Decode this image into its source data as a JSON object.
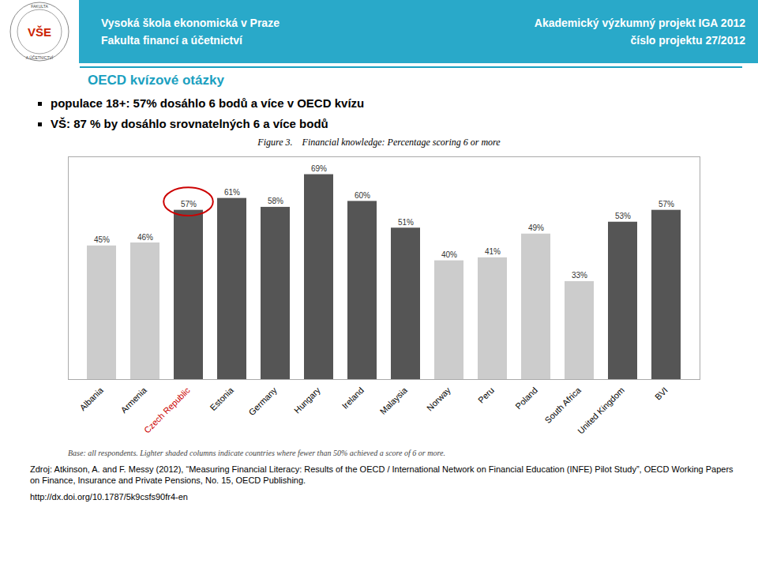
{
  "chart_data": {
    "type": "bar",
    "title": "Figure 3.    Financial knowledge: Percentage scoring 6 or more",
    "categories": [
      "Albania",
      "Armenia",
      "Czech Republic",
      "Estonia",
      "Germany",
      "Hungary",
      "Ireland",
      "Malaysia",
      "Norway",
      "Peru",
      "Poland",
      "South Africa",
      "United Kingdom",
      "BVI"
    ],
    "values": [
      45,
      46,
      57,
      61,
      58,
      69,
      60,
      51,
      40,
      41,
      49,
      33,
      53,
      57
    ],
    "value_labels": [
      "45%",
      "46%",
      "57%",
      "61%",
      "58%",
      "69%",
      "60%",
      "51%",
      "40%",
      "41%",
      "49%",
      "33%",
      "53%",
      "57%"
    ],
    "colors": [
      "#cccccc",
      "#cccccc",
      "#555555",
      "#555555",
      "#555555",
      "#555555",
      "#555555",
      "#555555",
      "#cccccc",
      "#cccccc",
      "#cccccc",
      "#cccccc",
      "#555555",
      "#555555"
    ],
    "data_labels": true,
    "ylim": [
      0,
      75
    ],
    "grid": false,
    "tick_labels": "x",
    "highlight": {
      "category": "Czech Republic",
      "color": "#cc0000"
    },
    "note": "Base: all respondents. Lighter shaded columns indicate countries where fewer than 50% achieved a score of 6 or more.",
    "header": {
      "color": "#29a9c9",
      "left": [
        "Vysoká škola ekonomická v Praze",
        "Fakulta financí a účetnictví"
      ],
      "right": [
        "Akademický výzkumný projekt IGA 2012",
        "číslo projektu 27/2012"
      ]
    },
    "logo": {
      "text": "VŠE",
      "color": "#cc2200",
      "ring_text": [
        "FAKULTA",
        "A ÚČETNICTVÍ"
      ]
    },
    "subtitle": "OECD kvízové otázky",
    "subtitle_color": "#1aa0c0",
    "bullets": [
      "populace 18+: 57% dosáhlo 6 bodů a více v OECD kvízu",
      "VŠ: 87 % by dosáhlo srovnatelných 6 a více bodů"
    ],
    "source": [
      "Zdroj: Atkinson, A. and F. Messy (2012), “Measuring Financial Literacy: Results of the OECD / International Network on Financial Education (INFE) Pilot Study”, OECD Working Papers on Finance, Insurance and Private Pensions, No. 15, OECD Publishing.",
      "http://dx.doi.org/10.1787/5k9csfs90fr4-en"
    ]
  }
}
